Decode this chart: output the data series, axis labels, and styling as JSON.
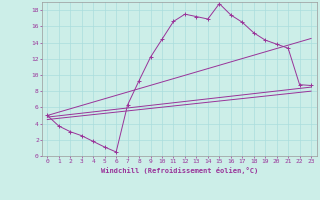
{
  "xlabel": "Windchill (Refroidissement éolien,°C)",
  "background_color": "#cceee8",
  "grid_color": "#aadddd",
  "line_color": "#993399",
  "xlim": [
    -0.5,
    23.5
  ],
  "ylim": [
    0,
    19
  ],
  "xticks": [
    0,
    1,
    2,
    3,
    4,
    5,
    6,
    7,
    8,
    9,
    10,
    11,
    12,
    13,
    14,
    15,
    16,
    17,
    18,
    19,
    20,
    21,
    22,
    23
  ],
  "yticks": [
    0,
    2,
    4,
    6,
    8,
    10,
    12,
    14,
    16,
    18
  ],
  "curve1_x": [
    0,
    1,
    2,
    3,
    4,
    5,
    6,
    7,
    8,
    9,
    10,
    11,
    12,
    13,
    14,
    15,
    16,
    17,
    18,
    19,
    20,
    21,
    22,
    23
  ],
  "curve1_y": [
    5.0,
    3.7,
    3.0,
    2.5,
    1.8,
    1.1,
    0.5,
    6.3,
    9.3,
    12.2,
    14.4,
    16.6,
    17.5,
    17.2,
    16.9,
    18.8,
    17.4,
    16.5,
    15.2,
    14.3,
    13.8,
    13.3,
    8.8,
    8.7
  ],
  "line1_x": [
    0,
    23
  ],
  "line1_y": [
    5.0,
    14.5
  ],
  "line2_x": [
    0,
    23
  ],
  "line2_y": [
    4.8,
    8.5
  ],
  "line3_x": [
    0,
    23
  ],
  "line3_y": [
    4.5,
    8.0
  ]
}
